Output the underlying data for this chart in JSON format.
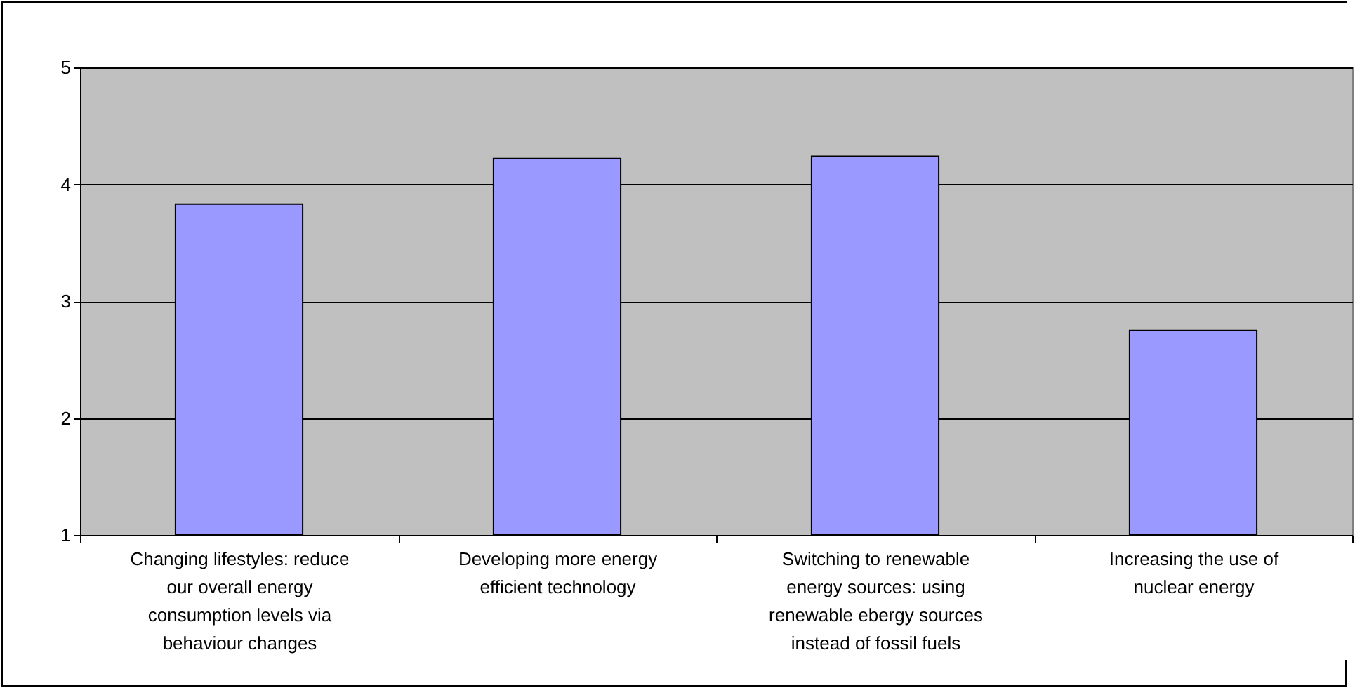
{
  "chart_data": {
    "type": "bar",
    "categories": [
      "Changing lifestyles: reduce our overall energy consumption levels via behaviour changes",
      "Developing more energy efficient technology",
      "Switching to renewable energy sources: using renewable ebergy sources instead of fossil fuels",
      "Increasing the use of nuclear energy"
    ],
    "values": [
      3.83,
      4.22,
      4.24,
      2.75
    ],
    "color": "#9999ff",
    "ylim": [
      1,
      5
    ],
    "yticks": [
      1,
      2,
      3,
      4,
      5
    ],
    "grid": "y"
  }
}
